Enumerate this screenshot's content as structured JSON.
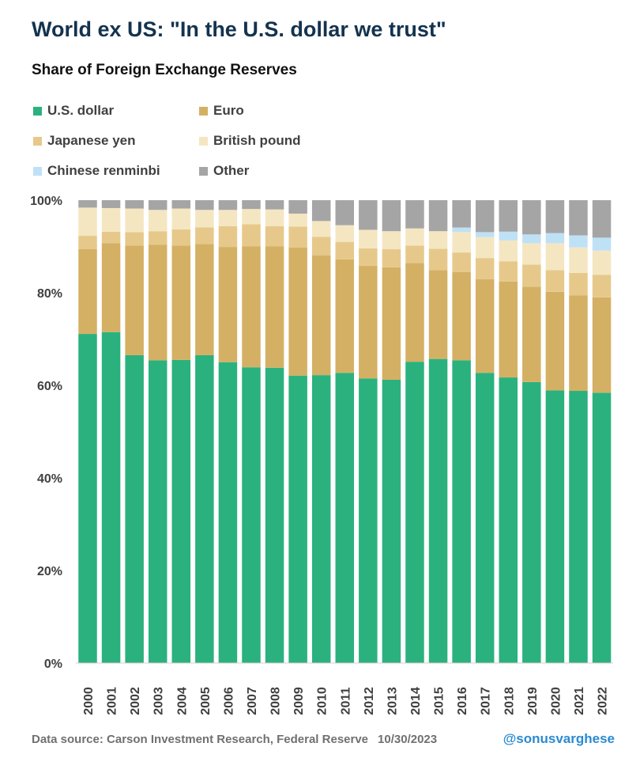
{
  "title": "World ex US: \"In the U.S. dollar we trust\"",
  "subtitle": "Share of Foreign Exchange Reserves",
  "footer": {
    "source": "Data source: Carson Investment Research, Federal Reserve",
    "date": "10/30/2023",
    "handle": "@sonusvarghese"
  },
  "chart_data": {
    "type": "bar",
    "stacked": true,
    "title": "Share of Foreign Exchange Reserves",
    "xlabel": "",
    "ylabel": "",
    "ylim": [
      0,
      100
    ],
    "yticks": [
      "0%",
      "20%",
      "40%",
      "60%",
      "80%",
      "100%"
    ],
    "categories": [
      "2000",
      "2001",
      "2002",
      "2003",
      "2004",
      "2005",
      "2006",
      "2007",
      "2008",
      "2009",
      "2010",
      "2011",
      "2012",
      "2013",
      "2014",
      "2015",
      "2016",
      "2017",
      "2018",
      "2019",
      "2020",
      "2021",
      "2022"
    ],
    "legend_position": "top-left",
    "series": [
      {
        "name": "U.S. dollar",
        "color": "#2bb17e",
        "values": [
          71.1,
          71.5,
          66.5,
          65.4,
          65.5,
          66.5,
          65.0,
          63.9,
          63.8,
          62.1,
          62.2,
          62.7,
          61.5,
          61.2,
          65.1,
          65.7,
          65.4,
          62.7,
          61.7,
          60.7,
          58.9,
          58.8,
          58.4
        ]
      },
      {
        "name": "Euro",
        "color": "#d4b064",
        "values": [
          18.3,
          19.2,
          23.7,
          25.0,
          24.7,
          24.0,
          24.9,
          26.1,
          26.2,
          27.7,
          25.9,
          24.5,
          24.3,
          24.3,
          21.3,
          19.2,
          19.1,
          20.2,
          20.7,
          20.6,
          21.3,
          20.6,
          20.6
        ]
      },
      {
        "name": "Japanese yen",
        "color": "#e6c98a",
        "values": [
          2.9,
          2.5,
          2.9,
          2.9,
          3.5,
          3.6,
          4.5,
          4.8,
          4.4,
          4.5,
          4.0,
          3.8,
          3.8,
          3.9,
          3.8,
          4.6,
          4.2,
          4.6,
          4.4,
          4.8,
          4.7,
          4.9,
          4.9
        ]
      },
      {
        "name": "British pound",
        "color": "#f5e6c2",
        "values": [
          6.1,
          5.1,
          5.1,
          4.6,
          4.5,
          3.8,
          3.5,
          3.3,
          3.6,
          2.8,
          3.4,
          3.6,
          4.0,
          3.9,
          3.7,
          3.8,
          4.4,
          4.5,
          4.5,
          4.6,
          5.8,
          5.5,
          5.2
        ]
      },
      {
        "name": "Chinese renminbi",
        "color": "#bfe1f5",
        "values": [
          0,
          0,
          0,
          0,
          0,
          0,
          0,
          0,
          0,
          0,
          0,
          0,
          0,
          0,
          0,
          0,
          1.0,
          1.1,
          1.9,
          1.9,
          2.2,
          2.6,
          2.8
        ]
      },
      {
        "name": "Other",
        "color": "#a5a5a5",
        "values": [
          1.6,
          1.7,
          1.8,
          2.1,
          1.8,
          2.1,
          2.1,
          1.9,
          2.0,
          2.9,
          4.5,
          5.4,
          6.4,
          6.7,
          6.1,
          6.7,
          5.9,
          6.9,
          6.8,
          7.4,
          7.1,
          7.6,
          8.1
        ]
      }
    ]
  }
}
